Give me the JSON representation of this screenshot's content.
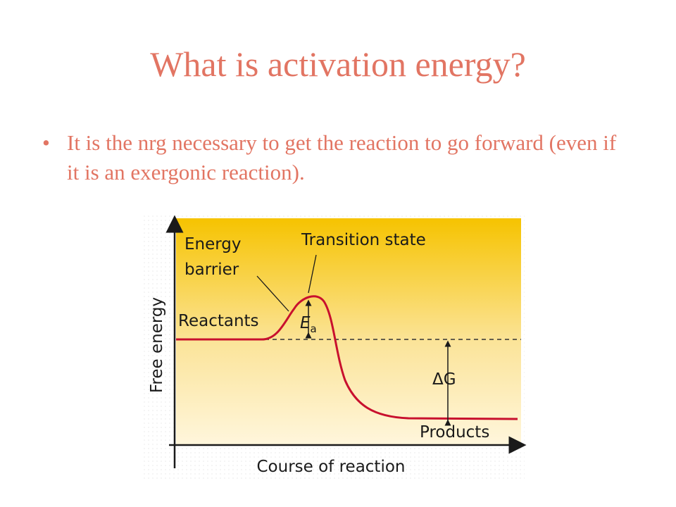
{
  "slide": {
    "title": "What is activation energy?",
    "bullets": [
      "It is the nrg necessary to get the reaction to go forward (even if it is an exergonic reaction)."
    ]
  },
  "diagram": {
    "energy_barrier": [
      "Energy",
      "barrier"
    ],
    "transition_state": "Transition state",
    "reactants": "Reactants",
    "ea_symbol": "E",
    "ea_subscript": "a",
    "delta_g": "ΔG",
    "products": "Products",
    "y_axis_label": "Free energy",
    "x_axis_label": "Course of reaction"
  }
}
